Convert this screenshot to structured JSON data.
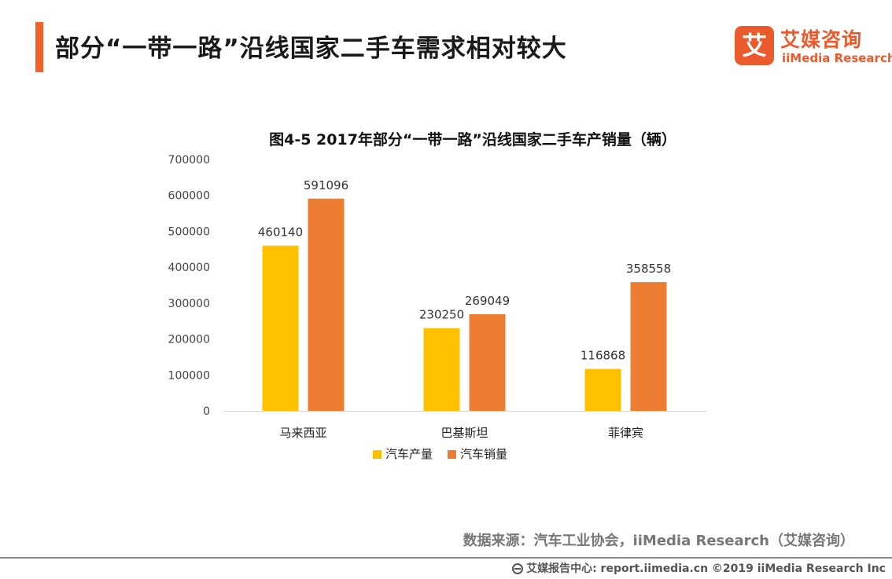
{
  "header": {
    "title": "部分“一带一路”沿线国家二手车需求相对较大"
  },
  "logo": {
    "mark": "艾",
    "name_cn": "艾媒咨询",
    "name_en": "iiMedia Research"
  },
  "source_text": "数据来源：汽车工业协会，iiMedia Research（艾媒咨询）",
  "footer": {
    "text": "艾媒报告中心: report.iimedia.cn  ©2019  iiMedia Research  Inc"
  },
  "colors": {
    "accent": "#f0622a",
    "production": "#ffc000",
    "sales": "#ed7d31",
    "axis": "#d9d9d9"
  },
  "chart_data": {
    "type": "bar",
    "title": "图4-5 2017年部分“一带一路”沿线国家二手车产销量（辆）",
    "categories": [
      "马来西亚",
      "巴基斯坦",
      "菲律宾"
    ],
    "series": [
      {
        "name": "汽车产量",
        "values": [
          460140,
          230250,
          116868
        ]
      },
      {
        "name": "汽车销量",
        "values": [
          591096,
          269049,
          358558
        ]
      }
    ],
    "ylim": [
      0,
      700000
    ],
    "yticks": [
      0,
      100000,
      200000,
      300000,
      400000,
      500000,
      600000,
      700000
    ],
    "grid": false,
    "legend_position": "bottom",
    "data_labels": true
  }
}
